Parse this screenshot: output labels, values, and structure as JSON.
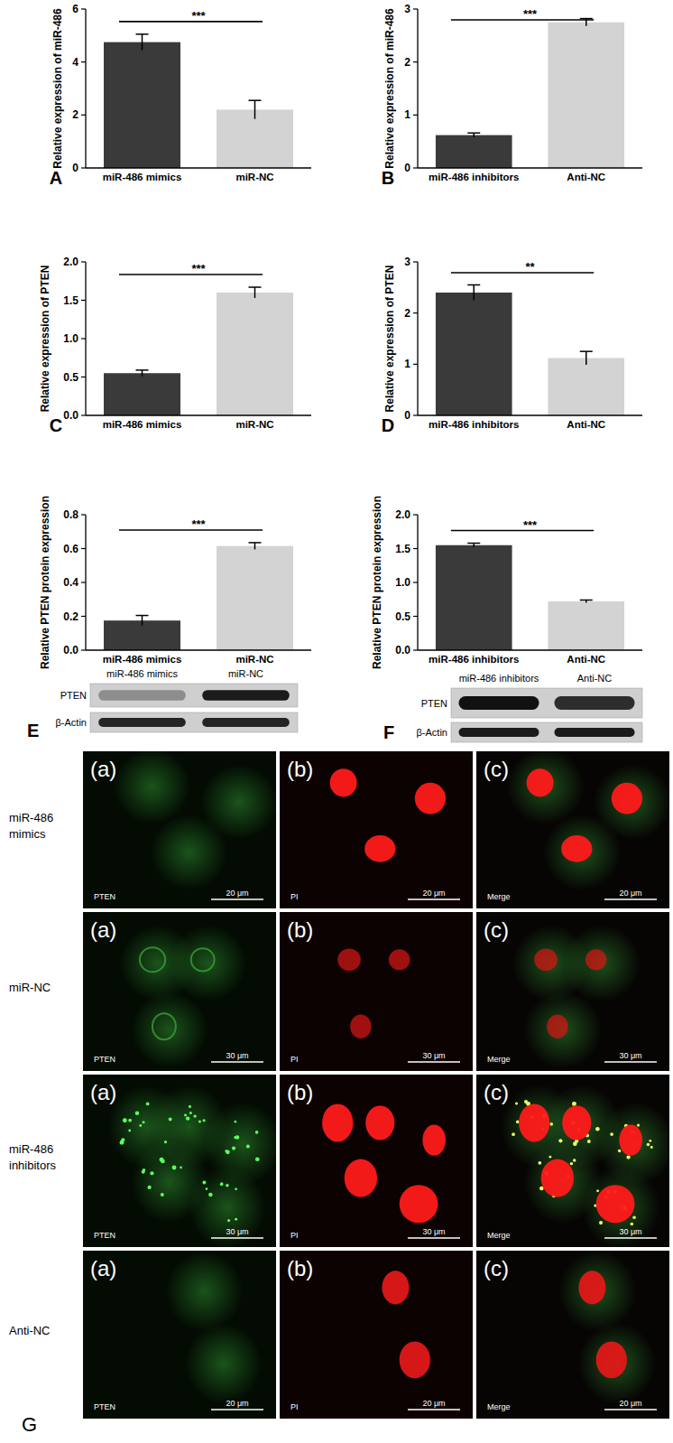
{
  "chart_data": [
    {
      "type": "bar",
      "panel_label": "A",
      "y_label": "Relative expression of miR-486",
      "categories": [
        "miR-486 mimics",
        "miR-NC"
      ],
      "values": [
        4.75,
        2.2
      ],
      "errors": [
        0.3,
        0.35
      ],
      "colors": [
        "#3a3a3a",
        "#d3d3d3"
      ],
      "ylim": [
        0,
        6
      ],
      "yticks": [
        0,
        2,
        4,
        6
      ],
      "annotation": "***"
    },
    {
      "type": "bar",
      "panel_label": "B",
      "y_label": "Relative expression of miR-486",
      "categories": [
        "miR-486 inhibitors",
        "Anti-NC"
      ],
      "values": [
        0.62,
        2.75
      ],
      "errors": [
        0.04,
        0.07
      ],
      "colors": [
        "#3a3a3a",
        "#d3d3d3"
      ],
      "ylim": [
        0,
        3
      ],
      "yticks": [
        0,
        1,
        2,
        3
      ],
      "annotation": "***"
    },
    {
      "type": "bar",
      "panel_label": "C",
      "y_label": "Relative expression of PTEN",
      "categories": [
        "miR-486 mimics",
        "miR-NC"
      ],
      "values": [
        0.55,
        1.6
      ],
      "errors": [
        0.04,
        0.07
      ],
      "colors": [
        "#3a3a3a",
        "#d3d3d3"
      ],
      "ylim": [
        0,
        2
      ],
      "yticks": [
        {
          "value": 0,
          "label": "0.0"
        },
        0.5,
        {
          "value": 1,
          "label": "1.0"
        },
        1.5,
        {
          "value": 2,
          "label": "2.0"
        }
      ],
      "annotation": "***"
    },
    {
      "type": "bar",
      "panel_label": "D",
      "y_label": "Relative expression of PTEN",
      "categories": [
        "miR-486 inhibitors",
        "Anti-NC"
      ],
      "values": [
        2.4,
        1.12
      ],
      "errors": [
        0.15,
        0.13
      ],
      "colors": [
        "#3a3a3a",
        "#d3d3d3"
      ],
      "ylim": [
        0,
        3
      ],
      "yticks": [
        0,
        1,
        2,
        3
      ],
      "annotation": "**"
    },
    {
      "type": "bar",
      "y_label": "Relative PTEN protein expression",
      "categories": [
        "miR-486 mimics",
        "miR-NC"
      ],
      "values": [
        0.175,
        0.615
      ],
      "errors": [
        0.03,
        0.02
      ],
      "colors": [
        "#3a3a3a",
        "#d3d3d3"
      ],
      "ylim": [
        0,
        0.8
      ],
      "yticks": [
        {
          "value": 0,
          "label": "0.0"
        },
        0.2,
        0.4,
        0.6,
        0.8
      ],
      "annotation": "***"
    },
    {
      "type": "bar",
      "y_label": "Relative PTEN protein expression",
      "categories": [
        "miR-486 inhibitors",
        "Anti-NC"
      ],
      "values": [
        1.55,
        0.72
      ],
      "errors": [
        0.03,
        0.02
      ],
      "colors": [
        "#3a3a3a",
        "#d3d3d3"
      ],
      "ylim": [
        0,
        2
      ],
      "yticks": [
        {
          "value": 0,
          "label": "0.0"
        },
        0.5,
        {
          "value": 1,
          "label": "1.0"
        },
        1.5,
        {
          "value": 2,
          "label": "2.0"
        }
      ],
      "annotation": "***"
    }
  ],
  "blots": [
    {
      "panel_label": "E",
      "lanes": [
        "miR-486 mimics",
        "miR-NC"
      ],
      "rows": [
        "PTEN",
        "β-Actin"
      ]
    },
    {
      "panel_label": "F",
      "lanes": [
        "miR-486 inhibitors",
        "Anti-NC"
      ],
      "rows": [
        "PTEN",
        "β-Actin"
      ]
    }
  ],
  "microscopy": {
    "panel_label": "G",
    "columns": [
      {
        "letter": "(a)",
        "stain": "PTEN"
      },
      {
        "letter": "(b)",
        "stain": "PI"
      },
      {
        "letter": "(c)",
        "stain": "Merge"
      }
    ],
    "rows": [
      {
        "label": [
          "miR-486",
          "mimics"
        ],
        "scale_bar": "20 μm"
      },
      {
        "label": [
          "miR-NC"
        ],
        "scale_bar": "30 μm"
      },
      {
        "label": [
          "miR-486",
          "inhibitors"
        ],
        "scale_bar": "30 μm"
      },
      {
        "label": [
          "Anti-NC"
        ],
        "scale_bar": "20 μm"
      }
    ]
  }
}
